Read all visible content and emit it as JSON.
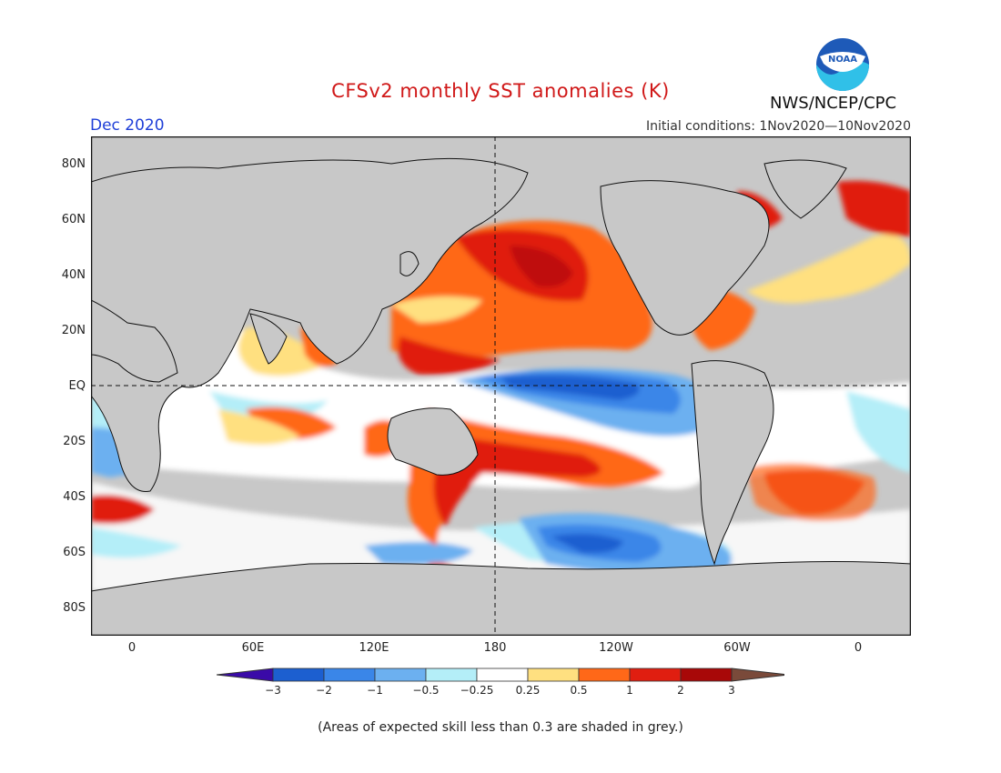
{
  "title": "CFSv2 monthly SST anomalies (K)",
  "month_label": "Dec 2020",
  "initial_conditions": "Initial conditions: 1Nov2020—10Nov2020",
  "agency": "NWS/NCEP/CPC",
  "logo_text": "NOAA",
  "note": "(Areas of expected skill less than 0.3 are shaded in grey.)",
  "map": {
    "lat_ticks": [
      "80N",
      "60N",
      "40N",
      "20N",
      "EQ",
      "20S",
      "40S",
      "60S",
      "80S"
    ],
    "lon_ticks": [
      "0",
      "60E",
      "120E",
      "180",
      "120W",
      "60W",
      "0"
    ],
    "land_color": "#c8c8c8",
    "low_skill_color": "#c8c8c8"
  },
  "colorbar": {
    "labels": [
      "−3",
      "−2",
      "−1",
      "−0.5",
      "−0.25",
      "0.25",
      "0.5",
      "1",
      "2",
      "3"
    ],
    "colors": [
      "#3a0aa8",
      "#1c5fd0",
      "#3a86e8",
      "#6cb0f0",
      "#b4eef8",
      "#ffffff",
      "#ffe080",
      "#ff6818",
      "#e01e10",
      "#a80808",
      "#7a4a3a"
    ]
  }
}
